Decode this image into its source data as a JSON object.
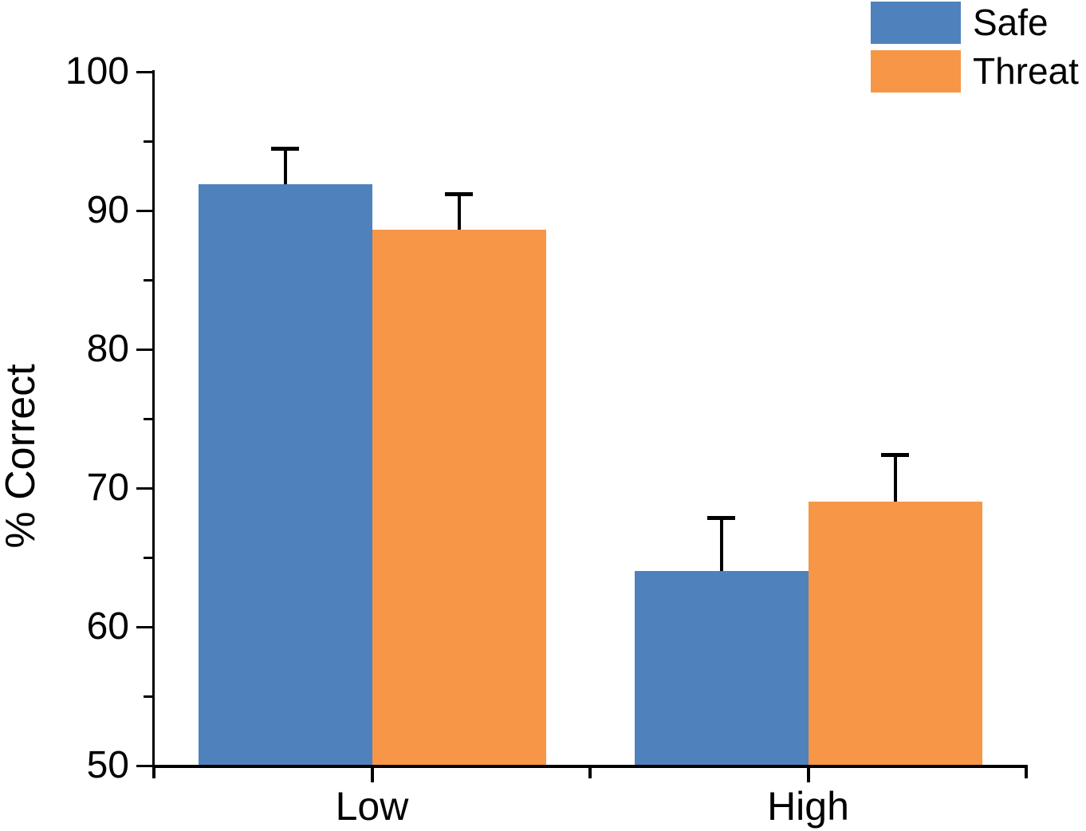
{
  "figure": {
    "background": "#ffffff",
    "text_color": "#000000"
  },
  "chart_data": {
    "type": "bar",
    "title": "",
    "xlabel": "",
    "ylabel": "% Correct",
    "categories": [
      "Low",
      "High"
    ],
    "series": [
      {
        "name": "Safe",
        "color": "#4F81BD",
        "values": [
          91.9,
          64.0
        ],
        "error_up": [
          2.6,
          3.9
        ]
      },
      {
        "name": "Threat",
        "color": "#F79646",
        "values": [
          88.6,
          69.0
        ],
        "error_up": [
          2.6,
          3.4
        ]
      }
    ],
    "ylim": [
      50,
      100
    ],
    "y_major_ticks": [
      50,
      60,
      70,
      80,
      90,
      100
    ],
    "y_minor_ticks": [
      55,
      65,
      75,
      85,
      95
    ],
    "grid": false,
    "legend_position": "top-right",
    "error_bar_color": "#000000",
    "axis_color": "#000000"
  }
}
